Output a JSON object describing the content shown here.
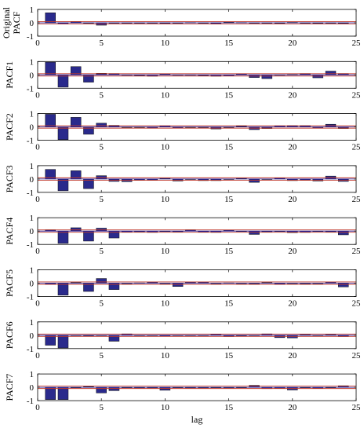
{
  "chart_data": {
    "type": "bar",
    "xlabel": "lag",
    "xlim": [
      0,
      25
    ],
    "ylim": [
      -1,
      1
    ],
    "x_ticks": [
      0,
      5,
      10,
      15,
      20,
      25
    ],
    "y_ticks": [
      -1,
      0,
      1
    ],
    "confidence_bound": 0.09,
    "bar_color": "#2a2a8c",
    "bound_color": "#c0392b",
    "zero_line_color": "#1a1aa0",
    "lags": [
      1,
      2,
      3,
      4,
      5,
      6,
      7,
      8,
      9,
      10,
      11,
      12,
      13,
      14,
      15,
      16,
      17,
      18,
      19,
      20,
      21,
      22,
      23,
      24
    ],
    "panels": [
      {
        "label": [
          "Original",
          "PACF"
        ],
        "values": [
          0.75,
          -0.1,
          0.08,
          0.0,
          -0.18,
          -0.02,
          0.0,
          -0.03,
          -0.02,
          -0.05,
          0.0,
          0.02,
          -0.02,
          -0.07,
          0.04,
          0.02,
          0.0,
          -0.03,
          -0.04,
          0.03,
          -0.03,
          -0.04,
          0.0,
          -0.05
        ]
      },
      {
        "label": [
          "PACF1"
        ],
        "values": [
          0.95,
          -0.92,
          0.62,
          -0.55,
          0.12,
          0.1,
          -0.02,
          -0.05,
          -0.1,
          0.07,
          -0.02,
          0.0,
          -0.05,
          -0.1,
          -0.08,
          0.08,
          -0.2,
          -0.28,
          -0.02,
          0.02,
          0.1,
          -0.22,
          0.28,
          0.1
        ]
      },
      {
        "label": [
          "PACF2"
        ],
        "values": [
          0.95,
          -0.95,
          0.72,
          -0.55,
          0.28,
          0.12,
          0.0,
          -0.02,
          -0.1,
          0.08,
          -0.08,
          0.0,
          -0.05,
          -0.15,
          -0.05,
          0.05,
          -0.2,
          -0.12,
          0.08,
          0.1,
          0.1,
          -0.1,
          0.2,
          -0.12
        ]
      },
      {
        "label": [
          "PACF3"
        ],
        "values": [
          0.72,
          -0.88,
          0.62,
          -0.72,
          0.25,
          -0.18,
          -0.2,
          -0.1,
          -0.1,
          0.05,
          -0.15,
          0.0,
          -0.12,
          -0.12,
          0.0,
          0.05,
          -0.25,
          -0.02,
          0.08,
          -0.12,
          -0.1,
          -0.15,
          0.22,
          -0.18
        ]
      },
      {
        "label": [
          "PACF4"
        ],
        "values": [
          0.1,
          -0.92,
          0.25,
          -0.75,
          0.22,
          -0.52,
          -0.08,
          -0.05,
          -0.1,
          0.0,
          -0.05,
          0.1,
          -0.08,
          -0.1,
          0.08,
          0.0,
          -0.25,
          -0.05,
          0.0,
          -0.12,
          -0.1,
          0.0,
          -0.05,
          -0.28
        ]
      },
      {
        "label": [
          "PACF5"
        ],
        "values": [
          -0.1,
          -0.9,
          0.05,
          -0.62,
          0.35,
          -0.48,
          0.0,
          0.02,
          0.08,
          0.0,
          -0.25,
          0.08,
          0.08,
          0.0,
          0.02,
          0.0,
          -0.05,
          0.05,
          -0.08,
          0.0,
          -0.05,
          0.0,
          0.1,
          -0.28
        ]
      },
      {
        "label": [
          "PACF6"
        ],
        "values": [
          -0.75,
          -0.95,
          0.0,
          -0.05,
          0.0,
          -0.45,
          0.1,
          0.0,
          0.0,
          -0.08,
          0.0,
          0.0,
          -0.02,
          0.08,
          -0.1,
          -0.05,
          0.0,
          0.1,
          -0.18,
          -0.2,
          0.05,
          0.0,
          0.05,
          -0.1
        ]
      },
      {
        "label": [
          "PACF7"
        ],
        "values": [
          -0.92,
          -0.92,
          0.0,
          0.05,
          -0.42,
          -0.25,
          -0.02,
          -0.05,
          -0.05,
          -0.22,
          0.0,
          -0.05,
          -0.05,
          -0.02,
          -0.05,
          0.0,
          0.15,
          -0.1,
          -0.08,
          -0.2,
          -0.02,
          -0.08,
          -0.02,
          0.12
        ]
      }
    ]
  }
}
